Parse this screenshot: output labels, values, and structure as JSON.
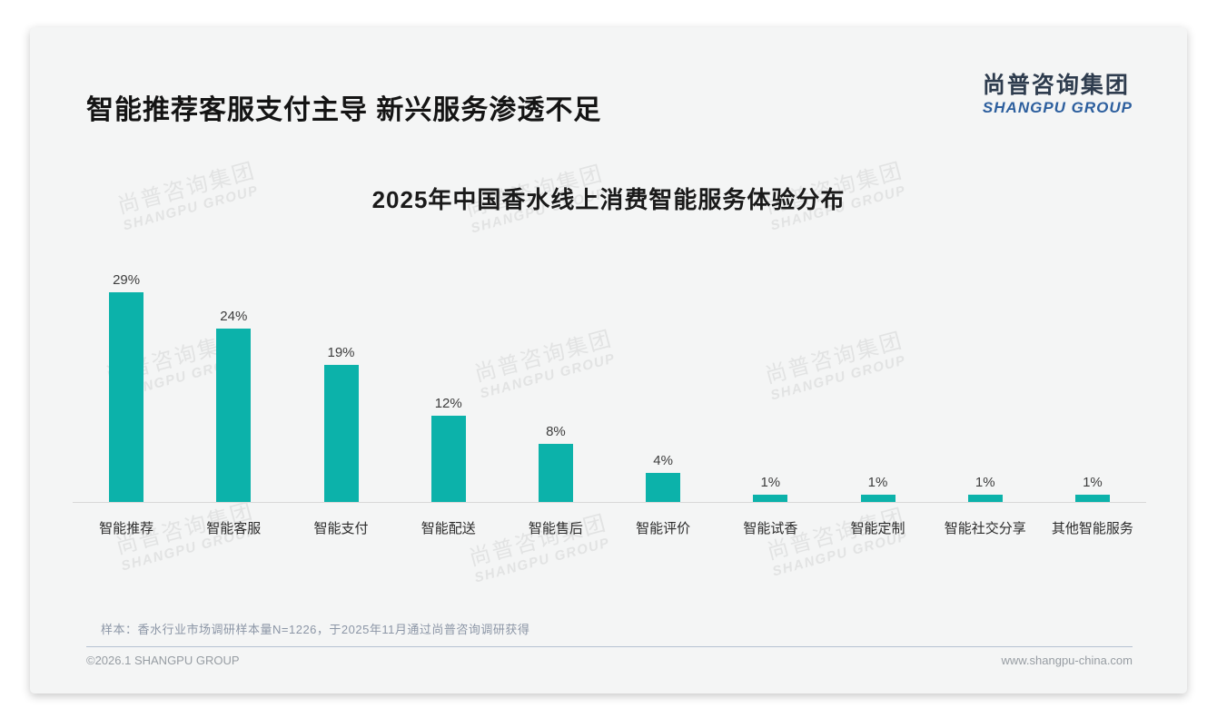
{
  "page": {
    "title": "智能推荐客服支付主导 新兴服务渗透不足"
  },
  "logo": {
    "cn": "尚普咨询集团",
    "en": "SHANGPU GROUP",
    "cn_color": "#2e3c4e",
    "en_color": "#2d5f9e"
  },
  "watermark": {
    "line1": "尚普咨询集团",
    "line2": "SHANGPU GROUP"
  },
  "chart_data": {
    "type": "bar",
    "title": "2025年中国香水线上消费智能服务体验分布",
    "categories": [
      "智能推荐",
      "智能客服",
      "智能支付",
      "智能配送",
      "智能售后",
      "智能评价",
      "智能试香",
      "智能定制",
      "智能社交分享",
      "其他智能服务"
    ],
    "values": [
      29,
      24,
      19,
      12,
      8,
      4,
      1,
      1,
      1,
      1
    ],
    "unit": "%",
    "bar_color": "#0cb2aa",
    "xlabel": "",
    "ylabel": "",
    "ylim": [
      0,
      30
    ],
    "grid": false,
    "legend_position": "none",
    "value_labels_shown": true
  },
  "note": {
    "text": "样本：香水行业市场调研样本量N=1226，于2025年11月通过尚普咨询调研获得"
  },
  "footer": {
    "copyright": "©2026.1 SHANGPU GROUP",
    "website": "www.shangpu-china.com"
  }
}
